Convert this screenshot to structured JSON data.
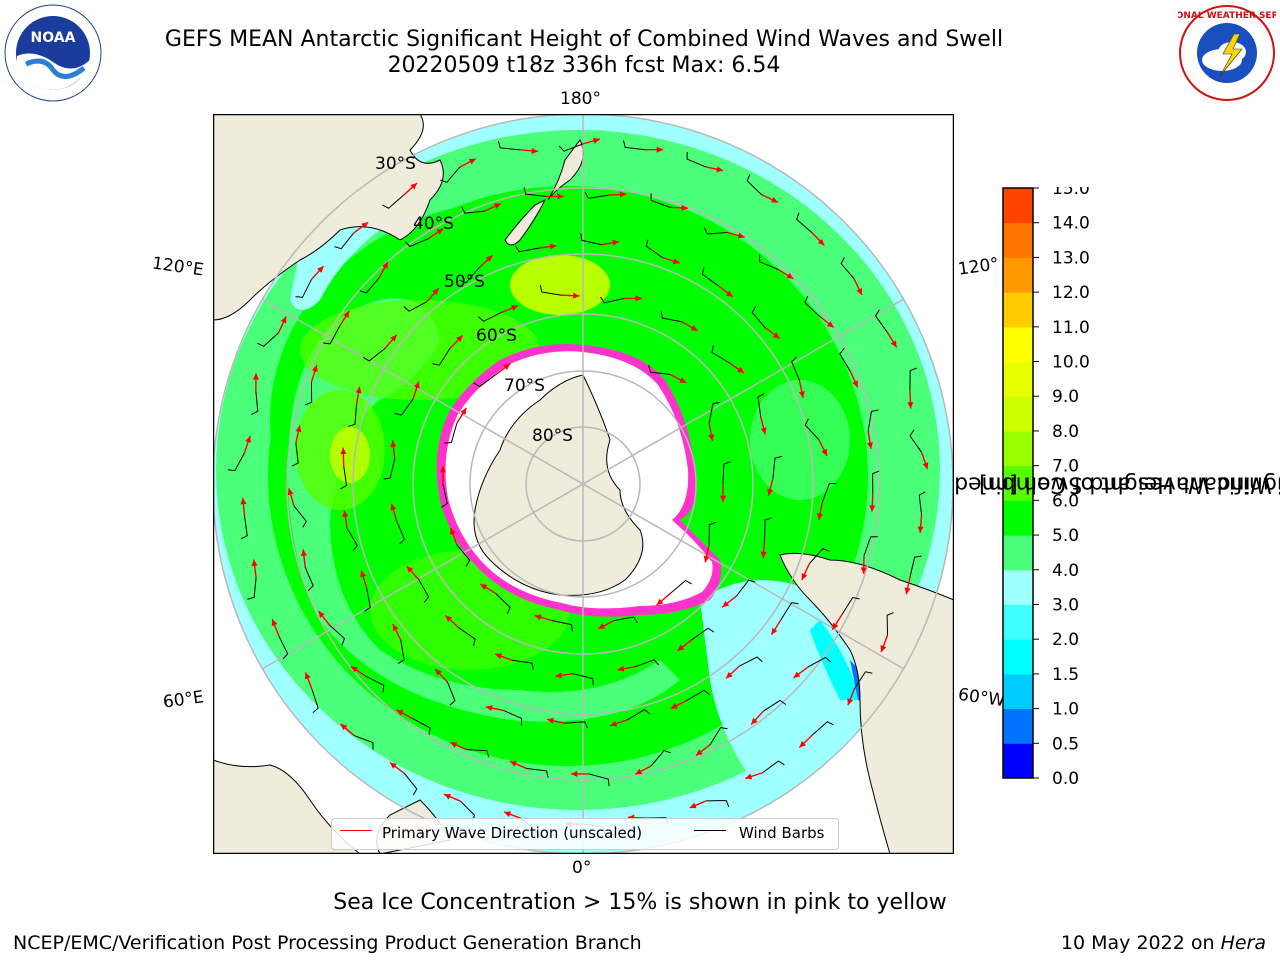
{
  "title_line1": "GEFS MEAN Antarctic Significant Height of Combined Wind Waves and Swell",
  "title_line2": "20220509 t18z 336h fcst   Max: 6.54",
  "map": {
    "lon_labels": {
      "top": "180°",
      "bottom": "0°",
      "upper_left": "120°E",
      "lower_left": "60°E",
      "upper_right": "120°",
      "lower_right": "60°W"
    },
    "lat_labels": [
      "30°S",
      "40°S",
      "50°S",
      "60°S",
      "70°S",
      "80°S"
    ],
    "colors": {
      "land": "#efecdc",
      "ice": "#ffffff",
      "gridline": "#b8b8b8",
      "coast": "#000000",
      "arrow": "#ff0000",
      "barb": "#000000",
      "sea_ice_edge": "#ff33cc"
    }
  },
  "legend": {
    "primary_wave": "Primary Wave Direction (unscaled)",
    "wind_barbs": "Wind Barbs"
  },
  "colorbar": {
    "title_line1": "Significant Height of Combined",
    "title_line2": "Wind Waves and Swell [m]",
    "ticks": [
      "15.0",
      "14.0",
      "13.0",
      "12.0",
      "11.0",
      "10.0",
      "9.0",
      "8.0",
      "7.0",
      "6.0",
      "5.0",
      "4.0",
      "3.0",
      "2.0",
      "1.5",
      "1.0",
      "0.5",
      "0.0"
    ],
    "colors": [
      "#0000ff",
      "#0073ff",
      "#00ccff",
      "#00ffff",
      "#40ffff",
      "#a0ffff",
      "#4cff7a",
      "#00ff00",
      "#55ff00",
      "#99ff00",
      "#ccff00",
      "#e8ff00",
      "#ffff00",
      "#ffcc00",
      "#ff9900",
      "#ff7700",
      "#ff4400",
      "#ff0000"
    ]
  },
  "caption": "Sea Ice Concentration > 15% is shown in pink to yellow",
  "footer_left": "NCEP/EMC/Verification Post Processing Product Generation Branch",
  "footer_right_prefix": "10 May 2022 on ",
  "footer_right_host": "Hera",
  "logos": {
    "noaa_text": "NOAA",
    "nws_text": "NATIONAL WEATHER SERVICE"
  }
}
